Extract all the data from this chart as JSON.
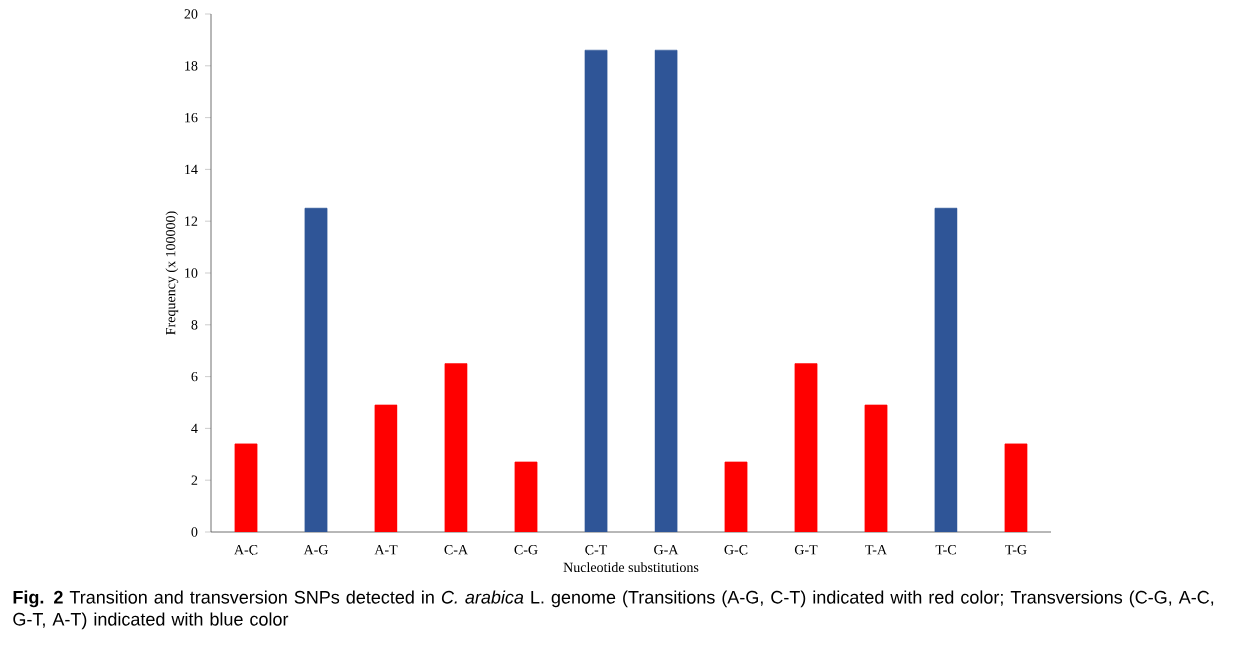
{
  "chart_data": {
    "type": "bar",
    "xlabel": "Nucleotide substitutions",
    "ylabel": "Frequency  (x 100000)",
    "categories": [
      "A-C",
      "A-G",
      "A-T",
      "C-A",
      "C-G",
      "C-T",
      "G-A",
      "G-C",
      "G-T",
      "T-A",
      "T-C",
      "T-G"
    ],
    "values": [
      3.4,
      12.5,
      4.9,
      6.5,
      2.7,
      18.6,
      18.6,
      2.7,
      6.5,
      4.9,
      12.5,
      3.4
    ],
    "colors": [
      "#ff0000",
      "#2f5597",
      "#ff0000",
      "#ff0000",
      "#ff0000",
      "#2f5597",
      "#2f5597",
      "#ff0000",
      "#ff0000",
      "#ff0000",
      "#2f5597",
      "#ff0000"
    ],
    "ylim": [
      0,
      20
    ],
    "yticks": [
      0,
      2,
      4,
      6,
      8,
      10,
      12,
      14,
      16,
      18,
      20
    ],
    "grid": false,
    "annotations": [
      "**Fig. 2** Transition and transversion SNPs detected in *C. arabica* L. genome (Transitions (A-G, C-T) indicated with red color; Transversions (C-G, A-C, G-T, A-T) indicated with blue color"
    ]
  }
}
